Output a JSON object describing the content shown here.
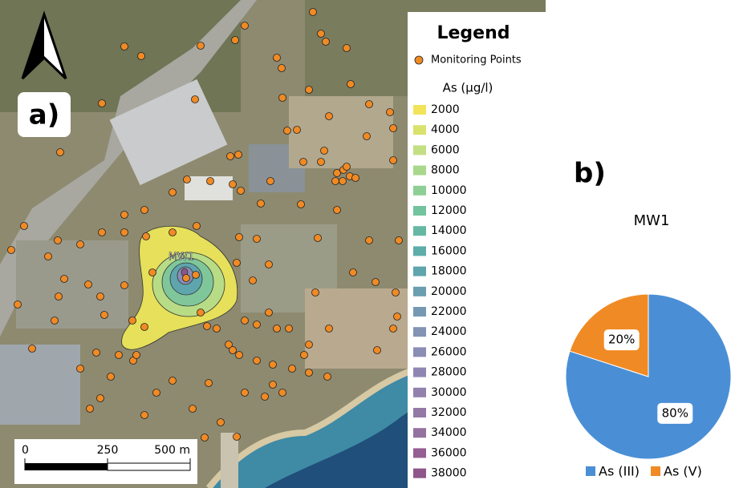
{
  "map": {
    "panel_label": "a)",
    "well_label": "MW1",
    "legend": {
      "title": "Legend",
      "points_label": "Monitoring Points",
      "points_color": "#f08a24",
      "scale_title": "As (µg/l)",
      "classes": [
        2000,
        4000,
        6000,
        8000,
        10000,
        12000,
        14000,
        16000,
        18000,
        20000,
        22000,
        24000,
        26000,
        28000,
        30000,
        32000,
        34000,
        36000,
        38000
      ],
      "class_colors": [
        "#f2e35b",
        "#d9e26c",
        "#c3df84",
        "#a8d88c",
        "#8dcf94",
        "#72c39e",
        "#66b7a4",
        "#5dadaa",
        "#5fa5ad",
        "#6a9eb0",
        "#7599b2",
        "#8293b4",
        "#8a8db4",
        "#8f87b2",
        "#9281ad",
        "#9479a7",
        "#9571a0",
        "#945f92",
        "#8e568a"
      ]
    },
    "scale_bar": {
      "ticks": [
        0,
        250,
        {
          "value": 500,
          "label": "500 m"
        }
      ]
    }
  },
  "chart_data": {
    "type": "pie",
    "panel_label": "b)",
    "title": "MW1",
    "categories": [
      "As (III)",
      "As (V)"
    ],
    "values": [
      80,
      20
    ],
    "value_labels": [
      "80%",
      "20%"
    ],
    "colors": [
      "#4a8fd6",
      "#f08a24"
    ],
    "legend": "bottom"
  }
}
